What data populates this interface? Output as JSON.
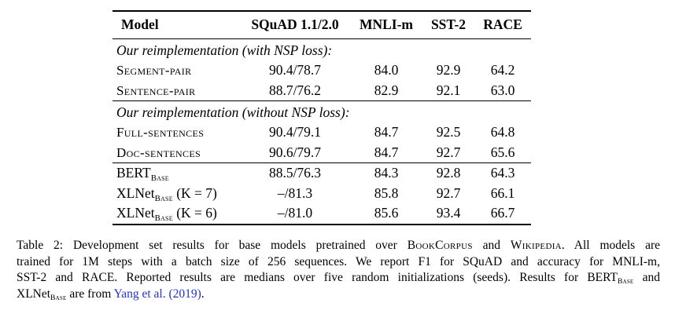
{
  "page": {
    "background_color": "#ffffff",
    "text_color": "#000000",
    "link_color": "#2333c4"
  },
  "table": {
    "columns": [
      "Model",
      "SQuAD 1.1/2.0",
      "MNLI-m",
      "SST-2",
      "RACE"
    ],
    "sections": [
      {
        "heading": "Our reimplementation (with NSP loss):",
        "rows": [
          {
            "model": "Segment-pair",
            "values": [
              "90.4/78.7",
              "84.0",
              "92.9",
              "64.2"
            ]
          },
          {
            "model": "Sentence-pair",
            "values": [
              "88.7/76.2",
              "82.9",
              "92.1",
              "63.0"
            ]
          }
        ]
      },
      {
        "heading": "Our reimplementation (without NSP loss):",
        "rows": [
          {
            "model": "Full-sentences",
            "values": [
              "90.4/79.1",
              "84.7",
              "92.5",
              "64.8"
            ]
          },
          {
            "model": "Doc-sentences",
            "values": [
              "90.6/79.7",
              "84.7",
              "92.7",
              "65.6"
            ]
          }
        ]
      },
      {
        "rows": [
          {
            "model": "BERT",
            "model_sub": "Base",
            "model_suffix": "",
            "values": [
              "88.5/76.3",
              "84.3",
              "92.8",
              "64.3"
            ]
          },
          {
            "model": "XLNet",
            "model_sub": "Base",
            "model_suffix": " (K = 7)",
            "values": [
              "–/81.3",
              "85.8",
              "92.7",
              "66.1"
            ]
          },
          {
            "model": "XLNet",
            "model_sub": "Base",
            "model_suffix": " (K = 6)",
            "values": [
              "–/81.0",
              "85.6",
              "93.4",
              "66.7"
            ]
          }
        ]
      }
    ]
  },
  "caption": {
    "lines": [
      {
        "segments": [
          {
            "text": "Table 2: Development set results for base models pretrained over "
          },
          {
            "text": "BookCorpus",
            "style": "smallcaps"
          },
          {
            "text": " and "
          },
          {
            "text": "Wikipedia",
            "style": "smallcaps"
          },
          {
            "text": ". All models are"
          }
        ]
      },
      {
        "segments": [
          {
            "text": "trained for 1M steps with a batch size of 256 sequences. We report F1 for SQuAD and accuracy for MNLI-m,"
          }
        ]
      },
      {
        "segments": [
          {
            "text": "SST-2 and RACE. Reported results are medians over five random initializations (seeds). Results for "
          },
          {
            "text": "BERT"
          },
          {
            "text": "Base",
            "style": "subscript-smallcaps"
          },
          {
            "text": " and"
          }
        ]
      },
      {
        "segments": [
          {
            "text": "XLNet"
          },
          {
            "text": "Base",
            "style": "subscript-smallcaps"
          },
          {
            "text": " are from "
          },
          {
            "text": "Yang et al. (2019)",
            "style": "link"
          },
          {
            "text": "."
          }
        ]
      }
    ]
  }
}
